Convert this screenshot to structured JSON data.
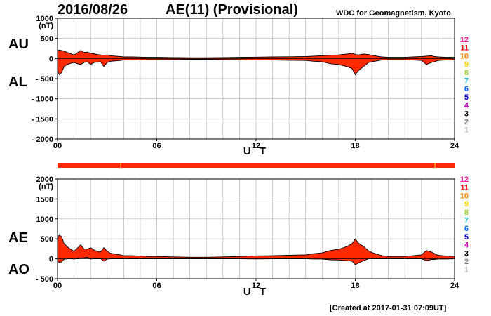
{
  "header": {
    "date": "2016/08/26",
    "title": "AE(11) (Provisional)",
    "credit": "WDC for Geomagnetism, Kyoto"
  },
  "footer": {
    "created": "[Created at 2017-01-31 07:09UT]"
  },
  "colors": {
    "fill": "#ff2a00",
    "outline": "#000000",
    "grid": "#b4b4b4",
    "status_bar": "#ff2a00",
    "status_gap": "#ffb000"
  },
  "legend": [
    {
      "label": "12",
      "color": "#ff1493"
    },
    {
      "label": "11",
      "color": "#ff0000"
    },
    {
      "label": "10",
      "color": "#ff8c00"
    },
    {
      "label": "9",
      "color": "#ffd700"
    },
    {
      "label": "8",
      "color": "#9acd32"
    },
    {
      "label": "7",
      "color": "#20c0e0"
    },
    {
      "label": "6",
      "color": "#0064ff"
    },
    {
      "label": "5",
      "color": "#0000c0"
    },
    {
      "label": "4",
      "color": "#c000c0"
    },
    {
      "label": "3",
      "color": "#000000"
    },
    {
      "label": "2",
      "color": "#808080"
    },
    {
      "label": "1",
      "color": "#c0c0c0"
    }
  ],
  "status_bar": {
    "segments": [
      {
        "from": 0,
        "to": 3.8,
        "status": "ok"
      },
      {
        "from": 3.8,
        "to": 3.85,
        "status": "gap"
      },
      {
        "from": 3.85,
        "to": 22.8,
        "status": "ok"
      },
      {
        "from": 22.8,
        "to": 22.85,
        "status": "gap"
      },
      {
        "from": 22.85,
        "to": 24,
        "status": "ok"
      }
    ]
  },
  "chart_data": [
    {
      "type": "area",
      "panel": "AU/AL",
      "label_upper": "AU",
      "label_lower": "AL",
      "unit": "(nT)",
      "xlabel": "U T",
      "xlim": [
        0,
        24
      ],
      "x_ticks": [
        "00",
        "06",
        "12",
        "18",
        "24"
      ],
      "ylim": [
        -2000,
        1000
      ],
      "y_ticks": [
        1000,
        500,
        0,
        -500,
        -1000,
        -1500,
        -2000
      ],
      "grid": true,
      "x": [
        0,
        0.1,
        0.25,
        0.4,
        0.6,
        0.8,
        1.0,
        1.2,
        1.4,
        1.6,
        1.8,
        2.0,
        2.2,
        2.4,
        2.6,
        2.8,
        3.0,
        3.2,
        3.5,
        3.8,
        4.0,
        4.5,
        5,
        5.5,
        6,
        7,
        8,
        9,
        10,
        11,
        12,
        13,
        14,
        15,
        15.5,
        16,
        16.5,
        17,
        17.5,
        17.8,
        18.0,
        18.2,
        18.5,
        18.8,
        19,
        19.3,
        19.6,
        20,
        21,
        21.5,
        22,
        22.3,
        22.6,
        22.8,
        23,
        23.5,
        24
      ],
      "series": [
        {
          "name": "AU",
          "values": [
            200,
            210,
            200,
            180,
            150,
            120,
            90,
            140,
            200,
            150,
            160,
            130,
            120,
            100,
            90,
            80,
            90,
            70,
            60,
            50,
            40,
            40,
            35,
            30,
            30,
            25,
            20,
            20,
            25,
            30,
            35,
            40,
            45,
            50,
            60,
            70,
            80,
            90,
            110,
            130,
            100,
            90,
            110,
            100,
            80,
            60,
            40,
            30,
            30,
            40,
            50,
            60,
            70,
            50,
            40,
            30,
            30
          ]
        },
        {
          "name": "AL",
          "values": [
            -300,
            -400,
            -350,
            -200,
            -150,
            -120,
            -100,
            -130,
            -150,
            -100,
            -80,
            -150,
            -100,
            -90,
            -80,
            -200,
            -100,
            -70,
            -60,
            -50,
            -40,
            -40,
            -35,
            -30,
            -30,
            -25,
            -20,
            -20,
            -25,
            -30,
            -40,
            -40,
            -45,
            -50,
            -70,
            -80,
            -130,
            -150,
            -200,
            -250,
            -400,
            -300,
            -200,
            -100,
            -80,
            -60,
            -40,
            -30,
            -30,
            -40,
            -50,
            -150,
            -100,
            -80,
            -50,
            -40,
            -30
          ]
        }
      ]
    },
    {
      "type": "area",
      "panel": "AE/AO",
      "label_upper": "AE",
      "label_lower": "AO",
      "unit": "(nT)",
      "xlabel": "U T",
      "xlim": [
        0,
        24
      ],
      "x_ticks": [
        "00",
        "06",
        "12",
        "18",
        "24"
      ],
      "ylim": [
        -500,
        2000
      ],
      "y_ticks": [
        2000,
        1500,
        1000,
        500,
        0,
        -500
      ],
      "grid": true,
      "x": [
        0,
        0.1,
        0.25,
        0.4,
        0.6,
        0.8,
        1.0,
        1.2,
        1.4,
        1.6,
        1.8,
        2.0,
        2.2,
        2.4,
        2.6,
        2.8,
        3.0,
        3.2,
        3.5,
        3.8,
        4.0,
        4.5,
        5,
        5.5,
        6,
        7,
        8,
        9,
        10,
        11,
        12,
        13,
        14,
        15,
        15.5,
        16,
        16.5,
        17,
        17.5,
        17.8,
        18.0,
        18.2,
        18.5,
        18.8,
        19,
        19.3,
        19.6,
        20,
        21,
        21.5,
        22,
        22.3,
        22.6,
        22.8,
        23,
        23.5,
        24
      ],
      "series": [
        {
          "name": "AE",
          "values": [
            500,
            610,
            550,
            380,
            300,
            240,
            190,
            270,
            350,
            250,
            240,
            280,
            220,
            190,
            170,
            280,
            190,
            140,
            120,
            100,
            80,
            80,
            70,
            60,
            60,
            50,
            40,
            40,
            50,
            60,
            75,
            80,
            90,
            100,
            130,
            150,
            210,
            240,
            310,
            380,
            500,
            390,
            310,
            200,
            160,
            120,
            80,
            60,
            60,
            80,
            100,
            210,
            170,
            130,
            90,
            70,
            60
          ]
        },
        {
          "name": "AO",
          "values": [
            -50,
            -95,
            -75,
            -10,
            0,
            0,
            -5,
            5,
            25,
            25,
            40,
            -10,
            10,
            5,
            5,
            -60,
            -5,
            0,
            0,
            0,
            0,
            0,
            0,
            0,
            0,
            0,
            0,
            0,
            0,
            0,
            -3,
            0,
            0,
            0,
            -5,
            -5,
            -25,
            -30,
            -45,
            -60,
            -150,
            -105,
            -45,
            0,
            0,
            0,
            0,
            0,
            0,
            0,
            0,
            -45,
            -15,
            -15,
            -5,
            -5,
            0
          ]
        }
      ]
    }
  ]
}
